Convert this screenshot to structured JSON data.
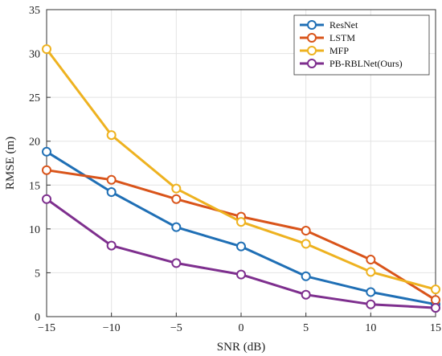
{
  "chart_data": {
    "type": "line",
    "xlabel": "SNR (dB)",
    "ylabel": "RMSE (m)",
    "x": [
      -15,
      -10,
      -5,
      0,
      5,
      10,
      15
    ],
    "xlim": [
      -15,
      15
    ],
    "ylim": [
      0,
      35
    ],
    "xticks": [
      -15,
      -10,
      -5,
      0,
      5,
      10,
      15
    ],
    "yticks": [
      0,
      5,
      10,
      15,
      20,
      25,
      30,
      35
    ],
    "xtick_labels": [
      "−15",
      "−10",
      "−5",
      "0",
      "5",
      "10",
      "15"
    ],
    "ytick_labels": [
      "0",
      "5",
      "10",
      "15",
      "20",
      "25",
      "30",
      "35"
    ],
    "grid": true,
    "legend_position": "top-right",
    "marker": "circle",
    "series": [
      {
        "name": "ResNet",
        "color": "#1f6fb5",
        "values": [
          18.8,
          14.2,
          10.2,
          8.0,
          4.6,
          2.8,
          1.4
        ]
      },
      {
        "name": "LSTM",
        "color": "#d9541a",
        "values": [
          16.7,
          15.6,
          13.4,
          11.4,
          9.8,
          6.5,
          1.9
        ]
      },
      {
        "name": "MFP",
        "color": "#eeb220",
        "values": [
          30.5,
          20.7,
          14.6,
          10.8,
          8.3,
          5.1,
          3.1
        ]
      },
      {
        "name": "PB-RBLNet(Ours)",
        "color": "#7e2f8e",
        "values": [
          13.4,
          8.1,
          6.1,
          4.8,
          2.5,
          1.4,
          1.0
        ]
      }
    ]
  }
}
